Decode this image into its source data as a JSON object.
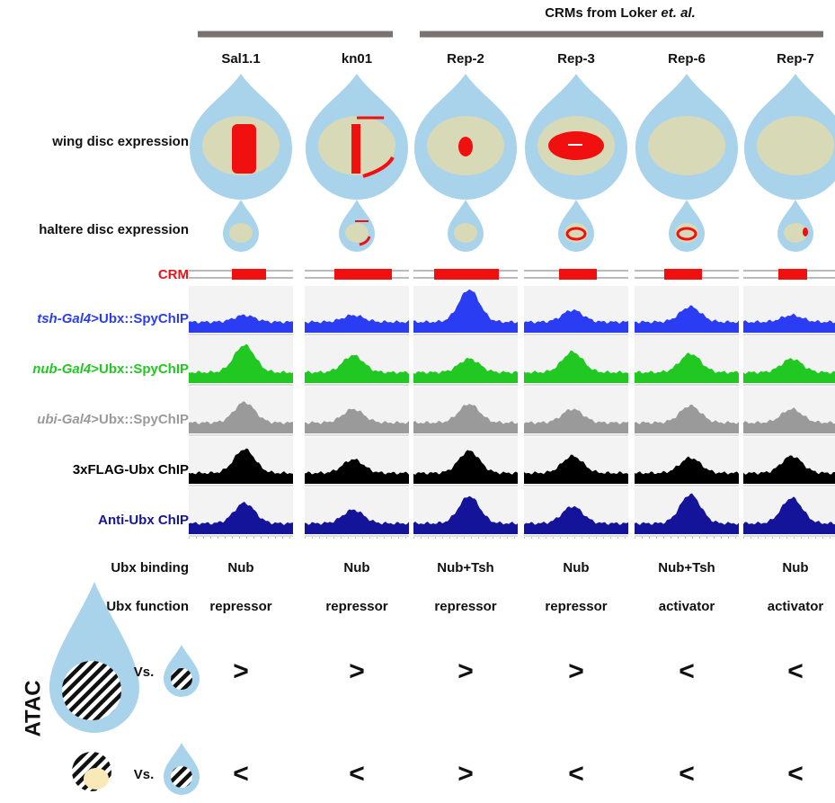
{
  "header": {
    "group_title": "CRMs from Loker ",
    "group_title_italic": "et. al."
  },
  "columns": [
    "Sal1.1",
    "kn01",
    "Rep-2",
    "Rep-3",
    "Rep-6",
    "Rep-7"
  ],
  "rows": {
    "wing": "wing disc expression",
    "haltere": "haltere disc expression",
    "crm": "CRM",
    "tracks": [
      {
        "italic": "tsh-Gal4",
        "text": ">Ubx::SpyChIP"
      },
      {
        "italic": "nub-Gal4",
        "text": ">Ubx::SpyChIP"
      },
      {
        "italic": "ubi-Gal4",
        "text": ">Ubx::SpyChIP"
      },
      {
        "text": "3xFLAG-Ubx ChIP"
      },
      {
        "text": "Anti-Ubx ChIP"
      }
    ]
  },
  "ubx_binding": {
    "label": "Ubx binding",
    "values": [
      "Nub",
      "Nub",
      "Nub+Tsh",
      "Nub",
      "Nub+Tsh",
      "Nub"
    ]
  },
  "ubx_function": {
    "label": "Ubx function",
    "values": [
      "repressor",
      "repressor",
      "repressor",
      "repressor",
      "activator",
      "activator"
    ]
  },
  "atac": {
    "label": "ATAC",
    "rows": [
      {
        "vs": "Vs.",
        "values": [
          ">",
          ">",
          ">",
          ">",
          "<",
          "<"
        ]
      },
      {
        "vs": "Vs.",
        "values": [
          "<",
          "<",
          ">",
          "<",
          "<",
          "<"
        ]
      }
    ]
  }
}
